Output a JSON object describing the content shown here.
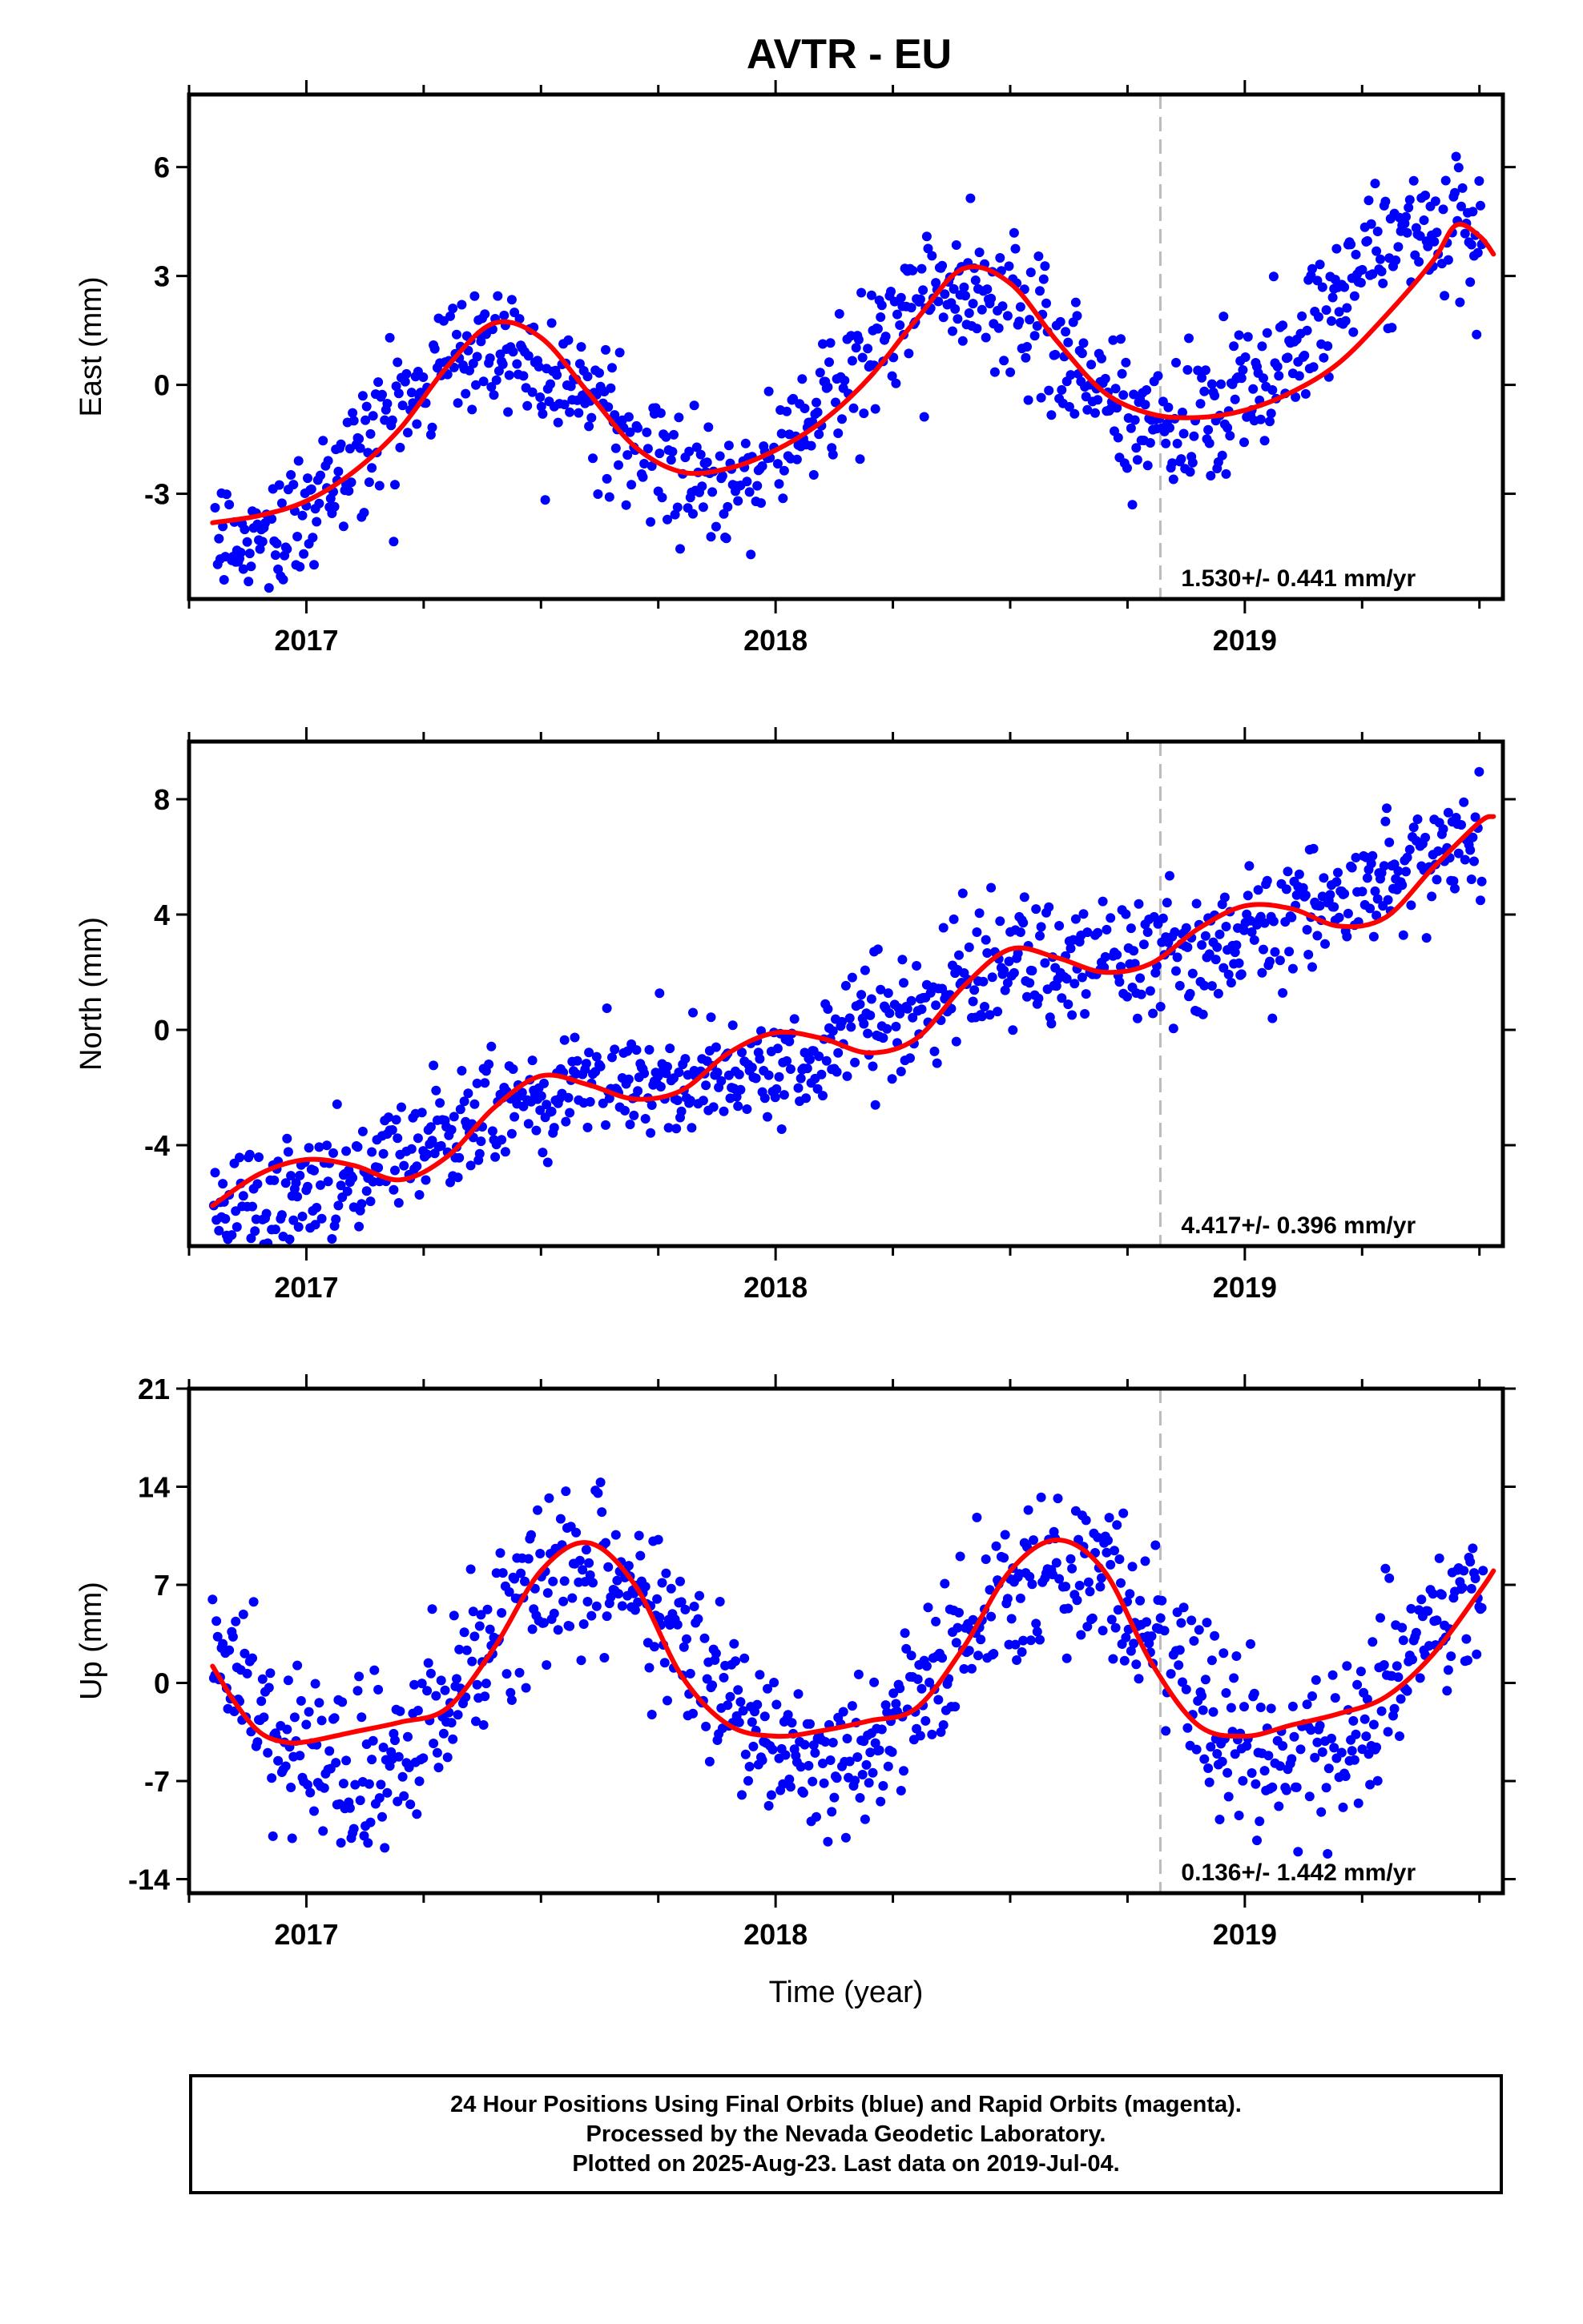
{
  "title": "AVTR - EU",
  "footer": {
    "line1": "24 Hour Positions Using Final Orbits (blue) and Rapid Orbits (magenta).",
    "line2": "Processed by the Nevada Geodetic Laboratory.",
    "line3": "Plotted on 2025-Aug-23. Last data on 2019-Jul-04."
  },
  "colors": {
    "points": "#0000ff",
    "fit": "#ff0000",
    "marker_line": "#bbbbbb",
    "axes": "#000000"
  },
  "chart_data": [
    {
      "type": "scatter",
      "name": "east",
      "ylabel": "East (mm)",
      "xlabel": "",
      "xlim": [
        2016.75,
        2019.55
      ],
      "ylim": [
        -5.9,
        8.0
      ],
      "yticks": [
        -3,
        0,
        3,
        6
      ],
      "xticks": [
        2017,
        2018,
        2019
      ],
      "xtick_labels": [
        "2017",
        "2018",
        "2019"
      ],
      "equipment_change": 2018.82,
      "rate_label": "1.530+/- 0.441 mm/yr",
      "trend": {
        "t0": 2018.15,
        "intercept": 0.0,
        "slope": 1.53
      },
      "seasonal": {
        "amplitude": 2.3,
        "peak_time": 2017.38,
        "noise": 0.9
      },
      "fit": [
        [
          2016.8,
          -3.8
        ],
        [
          2016.9,
          -3.6
        ],
        [
          2017.0,
          -3.2
        ],
        [
          2017.1,
          -2.4
        ],
        [
          2017.2,
          -1.2
        ],
        [
          2017.3,
          0.5
        ],
        [
          2017.4,
          1.7
        ],
        [
          2017.5,
          1.3
        ],
        [
          2017.6,
          -0.2
        ],
        [
          2017.7,
          -1.7
        ],
        [
          2017.8,
          -2.4
        ],
        [
          2017.9,
          -2.3
        ],
        [
          2018.0,
          -1.8
        ],
        [
          2018.1,
          -1.0
        ],
        [
          2018.2,
          0.2
        ],
        [
          2018.3,
          1.8
        ],
        [
          2018.4,
          3.2
        ],
        [
          2018.5,
          2.8
        ],
        [
          2018.6,
          1.2
        ],
        [
          2018.7,
          -0.2
        ],
        [
          2018.8,
          -0.8
        ],
        [
          2018.9,
          -0.9
        ],
        [
          2019.0,
          -0.7
        ],
        [
          2019.1,
          -0.2
        ],
        [
          2019.2,
          0.6
        ],
        [
          2019.3,
          1.9
        ],
        [
          2019.4,
          3.4
        ],
        [
          2019.45,
          4.4
        ],
        [
          2019.5,
          4.1
        ],
        [
          2019.53,
          3.6
        ]
      ]
    },
    {
      "type": "scatter",
      "name": "north",
      "ylabel": "North (mm)",
      "xlabel": "",
      "xlim": [
        2016.75,
        2019.55
      ],
      "ylim": [
        -7.5,
        10.0
      ],
      "yticks": [
        -4,
        0,
        4,
        8
      ],
      "xticks": [
        2017,
        2018,
        2019
      ],
      "xtick_labels": [
        "2017",
        "2018",
        "2019"
      ],
      "equipment_change": 2018.82,
      "rate_label": "4.417+/- 0.396 mm/yr",
      "trend": {
        "t0": 2018.15,
        "intercept": 0.0,
        "slope": 4.417
      },
      "seasonal": {
        "amplitude": 0.7,
        "peak_time": 2017.5,
        "noise": 1.0
      },
      "fit": [
        [
          2016.8,
          -6.1
        ],
        [
          2016.9,
          -5.0
        ],
        [
          2017.0,
          -4.5
        ],
        [
          2017.1,
          -4.7
        ],
        [
          2017.2,
          -5.2
        ],
        [
          2017.3,
          -4.4
        ],
        [
          2017.4,
          -2.7
        ],
        [
          2017.5,
          -1.6
        ],
        [
          2017.6,
          -1.9
        ],
        [
          2017.7,
          -2.4
        ],
        [
          2017.8,
          -2.1
        ],
        [
          2017.9,
          -0.8
        ],
        [
          2018.0,
          -0.1
        ],
        [
          2018.1,
          -0.3
        ],
        [
          2018.2,
          -0.8
        ],
        [
          2018.3,
          -0.3
        ],
        [
          2018.4,
          1.5
        ],
        [
          2018.5,
          2.8
        ],
        [
          2018.6,
          2.5
        ],
        [
          2018.7,
          2.0
        ],
        [
          2018.8,
          2.3
        ],
        [
          2018.9,
          3.5
        ],
        [
          2019.0,
          4.3
        ],
        [
          2019.1,
          4.2
        ],
        [
          2019.2,
          3.6
        ],
        [
          2019.3,
          3.9
        ],
        [
          2019.4,
          5.6
        ],
        [
          2019.5,
          7.2
        ],
        [
          2019.53,
          7.4
        ]
      ]
    },
    {
      "type": "scatter",
      "name": "up",
      "ylabel": "Up (mm)",
      "xlabel": "Time (year)",
      "xlim": [
        2016.75,
        2019.55
      ],
      "ylim": [
        -15.0,
        21.0
      ],
      "yticks": [
        -14,
        -7,
        0,
        7,
        14,
        21
      ],
      "xticks": [
        2017,
        2018,
        2019
      ],
      "xtick_labels": [
        "2017",
        "2018",
        "2019"
      ],
      "equipment_change": 2018.82,
      "rate_label": "0.136+/- 1.442 mm/yr",
      "trend": {
        "t0": 2018.15,
        "intercept": 1.0,
        "slope": 0.136
      },
      "seasonal": {
        "amplitude": 7.0,
        "peak_time": 2017.6,
        "noise": 3.0
      },
      "fit": [
        [
          2016.8,
          1.2
        ],
        [
          2016.85,
          -1.5
        ],
        [
          2016.9,
          -3.5
        ],
        [
          2016.95,
          -4.2
        ],
        [
          2017.0,
          -4.2
        ],
        [
          2017.1,
          -3.5
        ],
        [
          2017.2,
          -2.8
        ],
        [
          2017.3,
          -1.8
        ],
        [
          2017.4,
          2.5
        ],
        [
          2017.5,
          8.0
        ],
        [
          2017.6,
          10.0
        ],
        [
          2017.7,
          7.0
        ],
        [
          2017.8,
          0.5
        ],
        [
          2017.9,
          -3.0
        ],
        [
          2018.0,
          -3.8
        ],
        [
          2018.1,
          -3.4
        ],
        [
          2018.2,
          -2.7
        ],
        [
          2018.3,
          -1.8
        ],
        [
          2018.4,
          2.5
        ],
        [
          2018.5,
          8.0
        ],
        [
          2018.6,
          10.2
        ],
        [
          2018.7,
          8.0
        ],
        [
          2018.8,
          1.5
        ],
        [
          2018.9,
          -3.0
        ],
        [
          2019.0,
          -3.8
        ],
        [
          2019.1,
          -3.0
        ],
        [
          2019.2,
          -2.2
        ],
        [
          2019.3,
          -1.0
        ],
        [
          2019.4,
          2.0
        ],
        [
          2019.5,
          6.5
        ],
        [
          2019.53,
          8.0
        ]
      ]
    }
  ]
}
